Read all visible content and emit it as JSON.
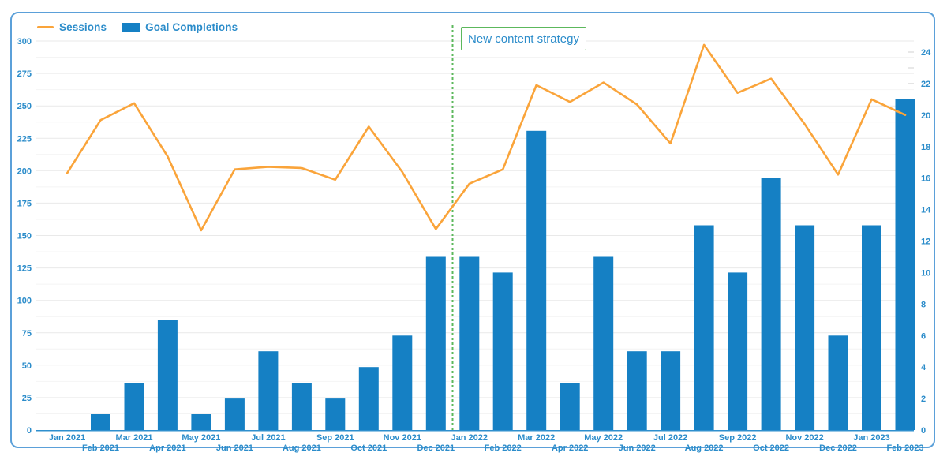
{
  "legend": {
    "items": [
      {
        "label": "Sessions",
        "swatch": "line-swatch"
      },
      {
        "label": "Goal Completions",
        "swatch": "rect-swatch"
      }
    ],
    "position": "top-left"
  },
  "annotation": {
    "label": "New content strategy",
    "anchored_between": [
      "Dec 2021",
      "Jan 2022"
    ],
    "line_style": "dashed-vertical",
    "border_color": "#5cb85c",
    "text_color": "#2b8cca"
  },
  "colors": {
    "sessions_line": "#faa43a",
    "goal_bars": "#1580c4",
    "axis_text": "#2b8cca",
    "card_border": "#5ba0d9",
    "baseline": "#2e8fce",
    "grid_major": "#e9e9e9",
    "grid_minor": "#f4f4f4",
    "right_tick": "#d9d9d9",
    "annotation_green": "#5cb85c"
  },
  "chart_data": {
    "type": "combo line+bar, dual axis",
    "categories": [
      "Jan 2021",
      "Feb 2021",
      "Mar 2021",
      "Apr 2021",
      "May 2021",
      "Jun 2021",
      "Jul 2021",
      "Aug 2021",
      "Sep 2021",
      "Oct 2021",
      "Nov 2021",
      "Dec 2021",
      "Jan 2022",
      "Feb 2022",
      "Mar 2022",
      "Apr 2022",
      "May 2022",
      "Jun 2022",
      "Jul 2022",
      "Aug 2022",
      "Sep 2022",
      "Oct 2022",
      "Nov 2022",
      "Dec 2022",
      "Jan 2023",
      "Feb 2023"
    ],
    "series": [
      {
        "name": "Sessions",
        "type": "line",
        "axis": "left",
        "color": "#faa43a",
        "values": [
          198,
          239,
          252,
          211,
          154,
          201,
          203,
          202,
          193,
          234,
          199,
          155,
          190,
          201,
          266,
          253,
          268,
          251,
          221,
          297,
          260,
          271,
          236,
          197,
          255,
          243
        ]
      },
      {
        "name": "Goal Completions",
        "type": "bar",
        "axis": "right",
        "color": "#1580c4",
        "values": [
          0,
          1,
          3,
          7,
          1,
          2,
          5,
          3,
          2,
          4,
          6,
          11,
          11,
          10,
          19,
          3,
          11,
          5,
          5,
          13,
          10,
          16,
          13,
          6,
          13,
          21
        ]
      }
    ],
    "left_axis": {
      "min": 0,
      "max": 300,
      "tick_step": 25,
      "minor_grid_step": 12.5
    },
    "right_axis": {
      "min": 0,
      "max": 24,
      "tick_step": 2,
      "minor_tick_step": 1
    },
    "grid": "horizontal only",
    "legend_position": "top-left",
    "annotation_label": "New content strategy"
  }
}
